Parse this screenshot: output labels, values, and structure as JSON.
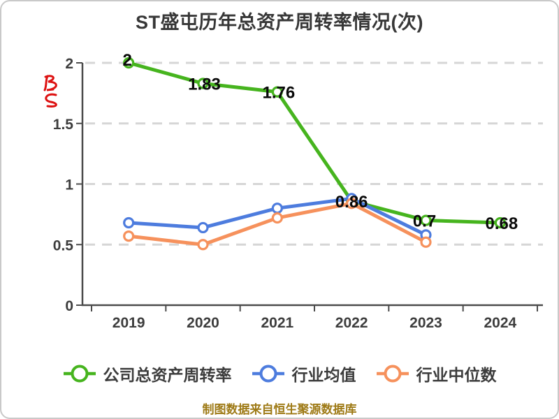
{
  "title": "ST盛屯历年总资产周转率情况(次)",
  "watermark": {
    "icon": "red-script-watermark-icon"
  },
  "footer": {
    "text": "制图数据来自恒生聚源数据库",
    "color": "#9e7a16"
  },
  "chart_data": {
    "type": "line",
    "title": "ST盛屯历年总资产周转率情况(次)",
    "categories": [
      "2019",
      "2020",
      "2021",
      "2022",
      "2023",
      "2024"
    ],
    "series": [
      {
        "name": "公司总资产周转率",
        "color": "#46b41e",
        "values": [
          2,
          1.83,
          1.76,
          0.86,
          0.7,
          0.68
        ],
        "labels": [
          "2",
          "1.83",
          "1.76",
          "0.86",
          "0.7",
          "0.68"
        ]
      },
      {
        "name": "行业均值",
        "color": "#4d7cde",
        "values": [
          0.68,
          0.64,
          0.8,
          0.88,
          0.58,
          null
        ],
        "labels": []
      },
      {
        "name": "行业中位数",
        "color": "#f6915c",
        "values": [
          0.57,
          0.5,
          0.72,
          0.84,
          0.52,
          null
        ],
        "labels": []
      }
    ],
    "ylim": [
      0,
      2
    ],
    "yticks": [
      "0",
      "0.5",
      "1",
      "1.5",
      "2"
    ],
    "grid": "horizontal-dashed",
    "gridline_color": "#d6d6d6",
    "axis_color": "#4b4b4b",
    "tick_label_color": "#3d3d3d",
    "data_label_color": "#0a0a0a",
    "legend_position": "bottom"
  }
}
